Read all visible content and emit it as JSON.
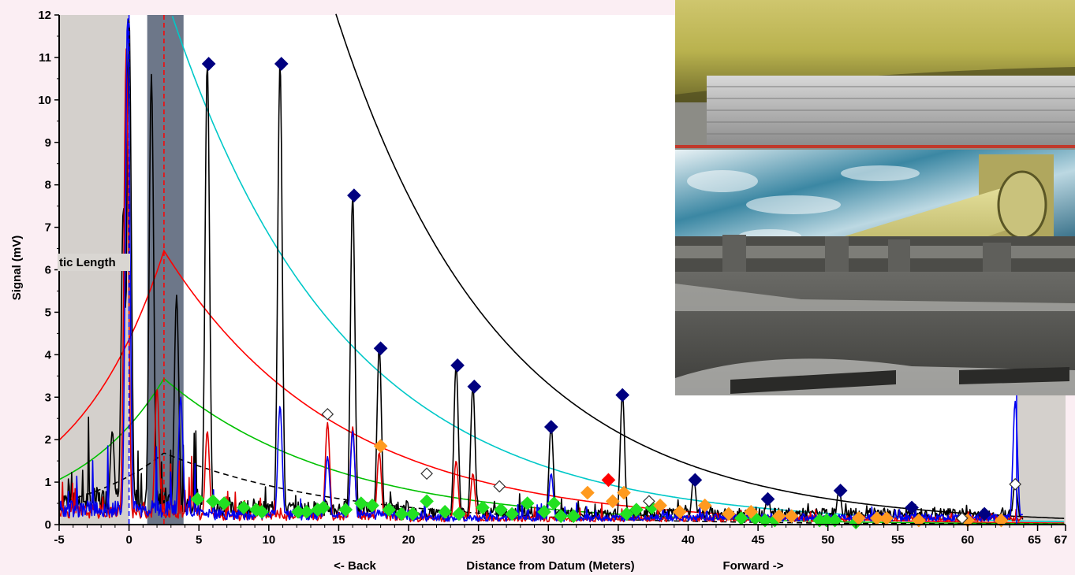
{
  "chart_data": {
    "type": "line",
    "xlabel": "Distance from Datum (Meters)",
    "xlabel_back": "<- Back",
    "xlabel_forward": "Forward ->",
    "ylabel": "Signal (mV)",
    "xlim": [
      -5,
      67
    ],
    "ylim": [
      0,
      12
    ],
    "x_ticks": [
      -5,
      0,
      5,
      10,
      15,
      20,
      25,
      30,
      35,
      40,
      45,
      50,
      55,
      60,
      65,
      67
    ],
    "y_ticks": [
      0,
      1,
      2,
      3,
      4,
      5,
      6,
      7,
      8,
      9,
      10,
      11,
      12
    ],
    "dead_zone_label": "tic Length",
    "shaded_regions": [
      {
        "x0": -5,
        "x1": 0,
        "color": "#d4d0cc"
      },
      {
        "x0": 1.3,
        "x1": 3.9,
        "color": "#6d7789"
      },
      {
        "x0": 63.5,
        "x1": 67,
        "color": "#d4d0cc"
      }
    ],
    "dac_curves": [
      {
        "color": "#00c8c8",
        "style": "solid",
        "k": 25.5,
        "x0": -6.2
      },
      {
        "color": "#ff0000",
        "style": "solid",
        "k": 10.5,
        "x0": -3.5
      },
      {
        "color": "#00c000",
        "style": "solid",
        "k": 5.6,
        "x0": -3.5
      },
      {
        "color": "#000000",
        "style": "dashed",
        "k": 2.75,
        "x0": -3.5
      },
      {
        "color": "#000000",
        "style": "solid",
        "k": 75,
        "x0": -6.8
      }
    ],
    "peaks_black": [
      {
        "x": -1.2,
        "y": 2.2
      },
      {
        "x": -0.4,
        "y": 7.5
      },
      {
        "x": 0,
        "y": 12
      },
      {
        "x": 1.6,
        "y": 10.6
      },
      {
        "x": 3.4,
        "y": 5.4
      },
      {
        "x": 5.6,
        "y": 10.9
      },
      {
        "x": 10.8,
        "y": 10.9
      },
      {
        "x": 16.0,
        "y": 7.8
      },
      {
        "x": 17.9,
        "y": 4.2
      },
      {
        "x": 23.4,
        "y": 3.8
      },
      {
        "x": 24.6,
        "y": 3.3
      },
      {
        "x": 30.2,
        "y": 2.35
      },
      {
        "x": 35.3,
        "y": 3.1
      },
      {
        "x": 40.4,
        "y": 1.1
      },
      {
        "x": 45.7,
        "y": 0.7
      },
      {
        "x": 50.8,
        "y": 0.85
      },
      {
        "x": 63.4,
        "y": 1.0
      }
    ],
    "peaks_red": [
      {
        "x": -0.2,
        "y": 11.2
      },
      {
        "x": 2.0,
        "y": 3.2
      },
      {
        "x": 5.6,
        "y": 2.2
      },
      {
        "x": 14.2,
        "y": 2.4
      },
      {
        "x": 16.0,
        "y": 2.3
      },
      {
        "x": 17.9,
        "y": 1.7
      },
      {
        "x": 23.4,
        "y": 1.5
      },
      {
        "x": 24.6,
        "y": 1.2
      }
    ],
    "peaks_blue": [
      {
        "x": -0.1,
        "y": 12
      },
      {
        "x": 3.7,
        "y": 3.0
      },
      {
        "x": 10.8,
        "y": 2.8
      },
      {
        "x": 16.0,
        "y": 2.2
      },
      {
        "x": 14.2,
        "y": 1.6
      },
      {
        "x": 30.2,
        "y": 1.2
      },
      {
        "x": 63.4,
        "y": 2.9
      }
    ],
    "markers_navy": [
      {
        "x": 5.7,
        "y": 10.85
      },
      {
        "x": 10.9,
        "y": 10.85
      },
      {
        "x": 16.1,
        "y": 7.75
      },
      {
        "x": 18.0,
        "y": 4.15
      },
      {
        "x": 23.5,
        "y": 3.75
      },
      {
        "x": 24.7,
        "y": 3.25
      },
      {
        "x": 30.2,
        "y": 2.3
      },
      {
        "x": 35.3,
        "y": 3.05
      },
      {
        "x": 40.5,
        "y": 1.05
      },
      {
        "x": 45.7,
        "y": 0.6
      },
      {
        "x": 50.9,
        "y": 0.8
      },
      {
        "x": 56.0,
        "y": 0.4
      },
      {
        "x": 61.2,
        "y": 0.25
      }
    ],
    "markers_orange": [
      {
        "x": 18.0,
        "y": 1.85
      },
      {
        "x": 32.8,
        "y": 0.75
      },
      {
        "x": 34.6,
        "y": 0.55
      },
      {
        "x": 35.4,
        "y": 0.75
      },
      {
        "x": 38.0,
        "y": 0.45
      },
      {
        "x": 39.4,
        "y": 0.3
      },
      {
        "x": 41.2,
        "y": 0.45
      },
      {
        "x": 42.9,
        "y": 0.25
      },
      {
        "x": 44.5,
        "y": 0.3
      },
      {
        "x": 46.5,
        "y": 0.2
      },
      {
        "x": 47.4,
        "y": 0.2
      },
      {
        "x": 52.2,
        "y": 0.15
      },
      {
        "x": 53.5,
        "y": 0.15
      },
      {
        "x": 54.2,
        "y": 0.15
      },
      {
        "x": 56.5,
        "y": 0.1
      },
      {
        "x": 60.0,
        "y": 0.1
      },
      {
        "x": 62.4,
        "y": 0.1
      }
    ],
    "markers_red": [
      {
        "x": 34.3,
        "y": 1.05
      }
    ],
    "markers_hollow": [
      {
        "x": 14.2,
        "y": 2.6
      },
      {
        "x": 21.3,
        "y": 1.2
      },
      {
        "x": 26.5,
        "y": 0.9
      },
      {
        "x": 37.2,
        "y": 0.55
      },
      {
        "x": 59.6,
        "y": 0.15
      },
      {
        "x": 63.4,
        "y": 0.95
      }
    ],
    "markers_green": [
      {
        "x": 4.9,
        "y": 0.6
      },
      {
        "x": 6.0,
        "y": 0.55
      },
      {
        "x": 6.8,
        "y": 0.5
      },
      {
        "x": 8.2,
        "y": 0.4
      },
      {
        "x": 9.1,
        "y": 0.35
      },
      {
        "x": 9.5,
        "y": 0.3
      },
      {
        "x": 12.1,
        "y": 0.3
      },
      {
        "x": 12.7,
        "y": 0.3
      },
      {
        "x": 13.5,
        "y": 0.35
      },
      {
        "x": 13.9,
        "y": 0.4
      },
      {
        "x": 15.5,
        "y": 0.35
      },
      {
        "x": 16.6,
        "y": 0.5
      },
      {
        "x": 17.4,
        "y": 0.45
      },
      {
        "x": 18.6,
        "y": 0.35
      },
      {
        "x": 19.5,
        "y": 0.25
      },
      {
        "x": 20.3,
        "y": 0.25
      },
      {
        "x": 21.3,
        "y": 0.55
      },
      {
        "x": 22.6,
        "y": 0.3
      },
      {
        "x": 23.6,
        "y": 0.25
      },
      {
        "x": 25.3,
        "y": 0.4
      },
      {
        "x": 26.6,
        "y": 0.35
      },
      {
        "x": 27.4,
        "y": 0.25
      },
      {
        "x": 28.5,
        "y": 0.5
      },
      {
        "x": 29.7,
        "y": 0.3
      },
      {
        "x": 30.4,
        "y": 0.5
      },
      {
        "x": 30.9,
        "y": 0.2
      },
      {
        "x": 31.8,
        "y": 0.2
      },
      {
        "x": 35.6,
        "y": 0.25
      },
      {
        "x": 36.3,
        "y": 0.35
      },
      {
        "x": 37.4,
        "y": 0.4
      },
      {
        "x": 43.8,
        "y": 0.15
      },
      {
        "x": 44.8,
        "y": 0.15
      },
      {
        "x": 45.5,
        "y": 0.1
      },
      {
        "x": 46.2,
        "y": 0.1
      },
      {
        "x": 49.4,
        "y": 0.1
      },
      {
        "x": 49.9,
        "y": 0.1
      },
      {
        "x": 50.5,
        "y": 0.1
      },
      {
        "x": 52.0,
        "y": 0.05
      }
    ],
    "vertical_lines": [
      {
        "x": 0,
        "color": "#0000ff",
        "style": "dashed"
      },
      {
        "x": 2.5,
        "color": "#ff0000",
        "style": "dashed"
      },
      {
        "x": 63.5,
        "color": "#0000ff",
        "style": "solid"
      }
    ]
  }
}
